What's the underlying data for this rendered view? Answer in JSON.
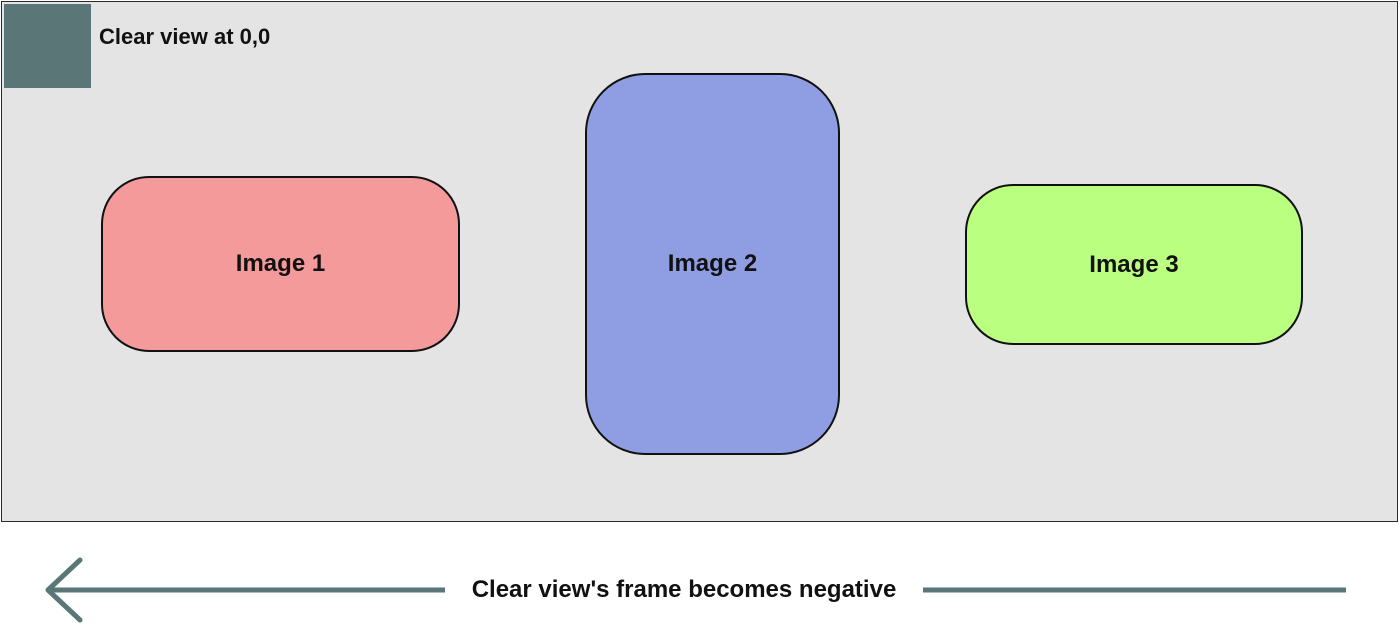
{
  "container": {
    "background": "#e4e4e4",
    "origin_marker_color": "#5a7677",
    "origin_label": "Clear view at 0,0"
  },
  "images": [
    {
      "label": "Image 1",
      "color": "#f49a9a"
    },
    {
      "label": "Image 2",
      "color": "#8f9ee2"
    },
    {
      "label": "Image 3",
      "color": "#baff7f"
    }
  ],
  "arrow": {
    "label": "Clear view's frame becomes negative",
    "color": "#5a7677",
    "direction": "left"
  }
}
